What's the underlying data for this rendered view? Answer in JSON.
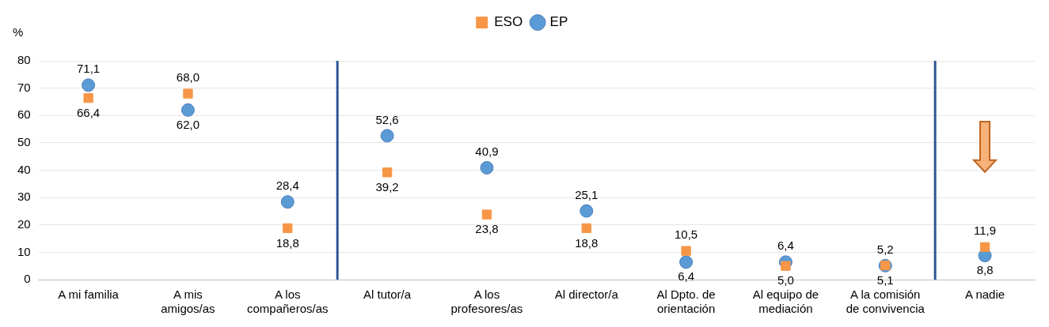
{
  "chart_data": {
    "type": "scatter",
    "annotations": [
      "%"
    ],
    "categories": [
      "A mi familia",
      "A mis amigos/as",
      "A los compañeros/as",
      "Al tutor/a",
      "A los profesores/as",
      "Al director/a",
      "Al Dpto. de orientación",
      "Al equipo de mediación",
      "A la comisión de convivencia",
      "A nadie"
    ],
    "series": [
      {
        "name": "EP",
        "color": "#5b9bd5",
        "marker": "circle",
        "values": [
          71.1,
          62.0,
          28.4,
          52.6,
          40.9,
          25.1,
          6.4,
          6.4,
          5.1,
          8.8
        ],
        "value_labels": [
          "71,1",
          "62,0",
          "28,4",
          "52,6",
          "40,9",
          "25,1",
          "6,4",
          "6,4",
          "5,1",
          "8,8"
        ]
      },
      {
        "name": "ESO",
        "color": "#f79646",
        "marker": "square",
        "values": [
          66.4,
          68.0,
          18.8,
          39.2,
          23.8,
          18.8,
          10.5,
          5.0,
          5.2,
          11.9
        ],
        "value_labels": [
          "66,4",
          "68,0",
          "18,8",
          "39,2",
          "23,8",
          "18,8",
          "10,5",
          "5,0",
          "5,2",
          "11,9"
        ]
      }
    ],
    "ylim": [
      0,
      80
    ],
    "yticks": [
      0,
      10,
      20,
      30,
      40,
      50,
      60,
      70,
      80
    ],
    "grid": "y",
    "legend": "top"
  }
}
